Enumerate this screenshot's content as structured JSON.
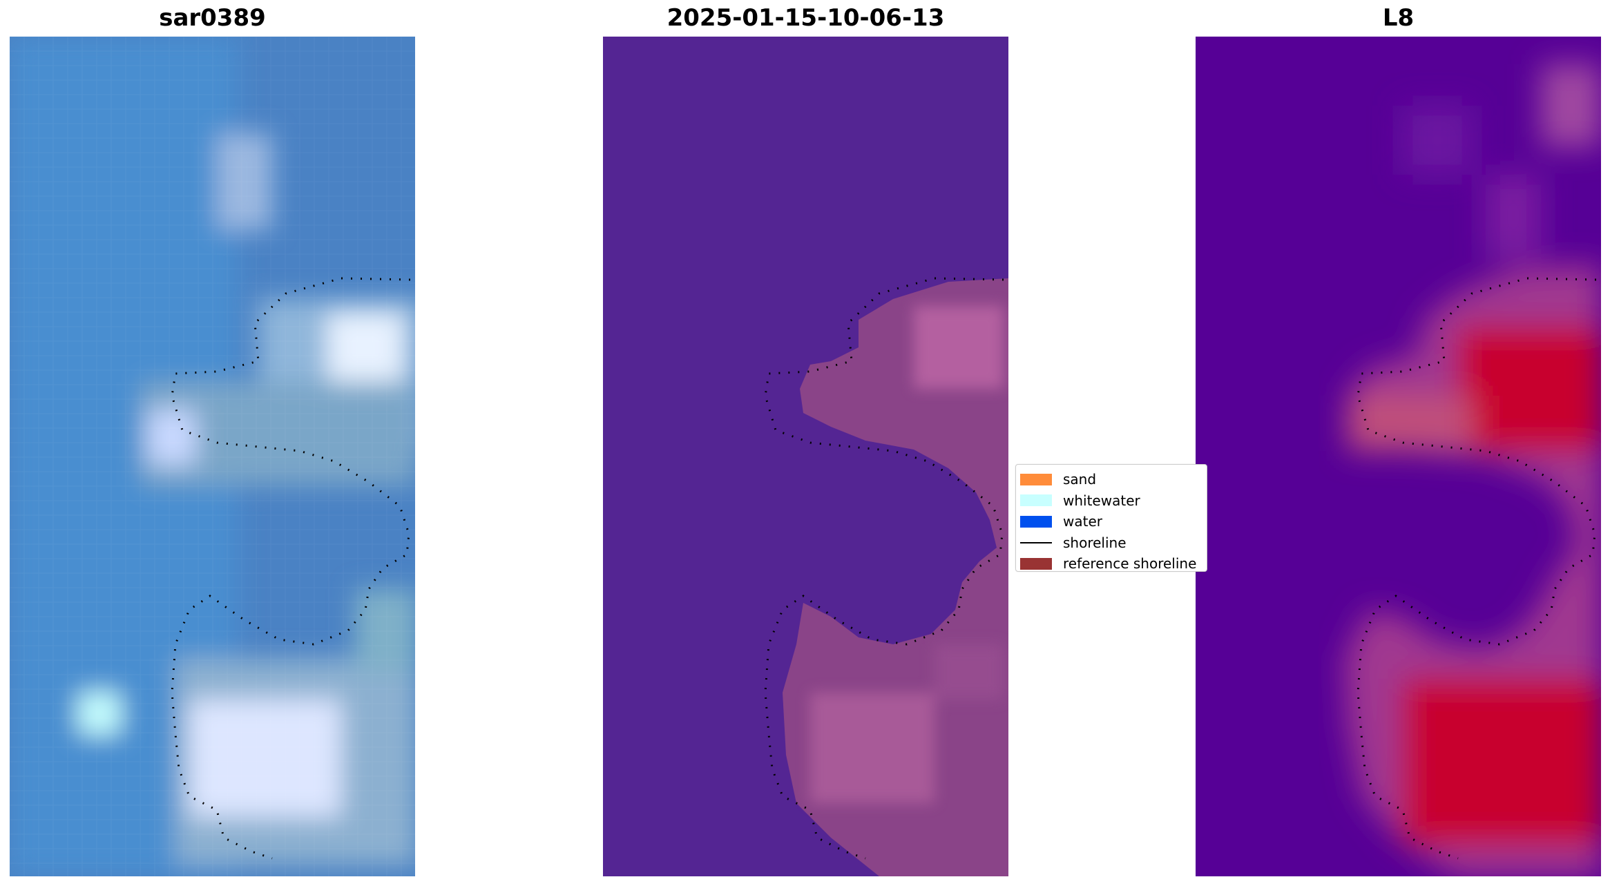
{
  "panels": [
    {
      "title": "sar0389"
    },
    {
      "title": "2025-01-15-10-06-13"
    },
    {
      "title": "L8"
    }
  ],
  "legend": {
    "items": [
      {
        "label": "sand",
        "color": "#ff8c3a",
        "kind": "patch"
      },
      {
        "label": "whitewater",
        "color": "#c8ffff",
        "kind": "patch"
      },
      {
        "label": "water",
        "color": "#0050ee",
        "kind": "patch"
      },
      {
        "label": "shoreline",
        "color": "#000000",
        "kind": "line"
      },
      {
        "label": "reference shoreline",
        "color": "#993333",
        "kind": "patch"
      }
    ]
  },
  "colors": {
    "rgb_water": "#4682c8",
    "rgb_whitewater": "#e6f0ff",
    "class_background": "#542593",
    "class_sand": "#8a4488",
    "index_low": "#560096",
    "index_high": "#c8002d"
  }
}
